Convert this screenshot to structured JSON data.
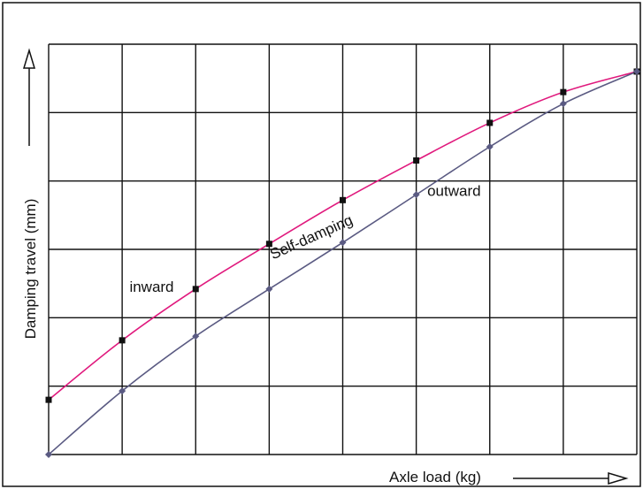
{
  "chart_data": {
    "type": "line",
    "title": "",
    "xlabel": "Axle load (kg)",
    "ylabel": "Damping travel (mm)",
    "xlim": [
      0,
      8
    ],
    "ylim": [
      0,
      6
    ],
    "grid": true,
    "legend": "none",
    "series": [
      {
        "label": "inward",
        "color": "#e0197d",
        "marker": "square",
        "marker_color": "#111111",
        "x": [
          0,
          1,
          2,
          3,
          4,
          5,
          6,
          7,
          8
        ],
        "y": [
          0.8,
          1.67,
          2.42,
          3.08,
          3.72,
          4.3,
          4.85,
          5.3,
          5.6
        ]
      },
      {
        "label": "outward",
        "color": "#5a5a82",
        "marker": "diamond",
        "marker_color": "#5a5a82",
        "x": [
          0,
          1,
          2,
          3,
          4,
          5,
          6,
          7,
          8
        ],
        "y": [
          0,
          0.93,
          1.73,
          2.42,
          3.1,
          3.8,
          4.5,
          5.13,
          5.6
        ]
      }
    ],
    "annotations": [
      {
        "text": "inward",
        "x": 1.1,
        "y": 2.38,
        "angle": 0
      },
      {
        "text": "outward",
        "x": 5.15,
        "y": 3.78,
        "angle": 0
      },
      {
        "text": "Self-damping",
        "x": 3.05,
        "y": 2.85,
        "angle": -24
      }
    ]
  }
}
